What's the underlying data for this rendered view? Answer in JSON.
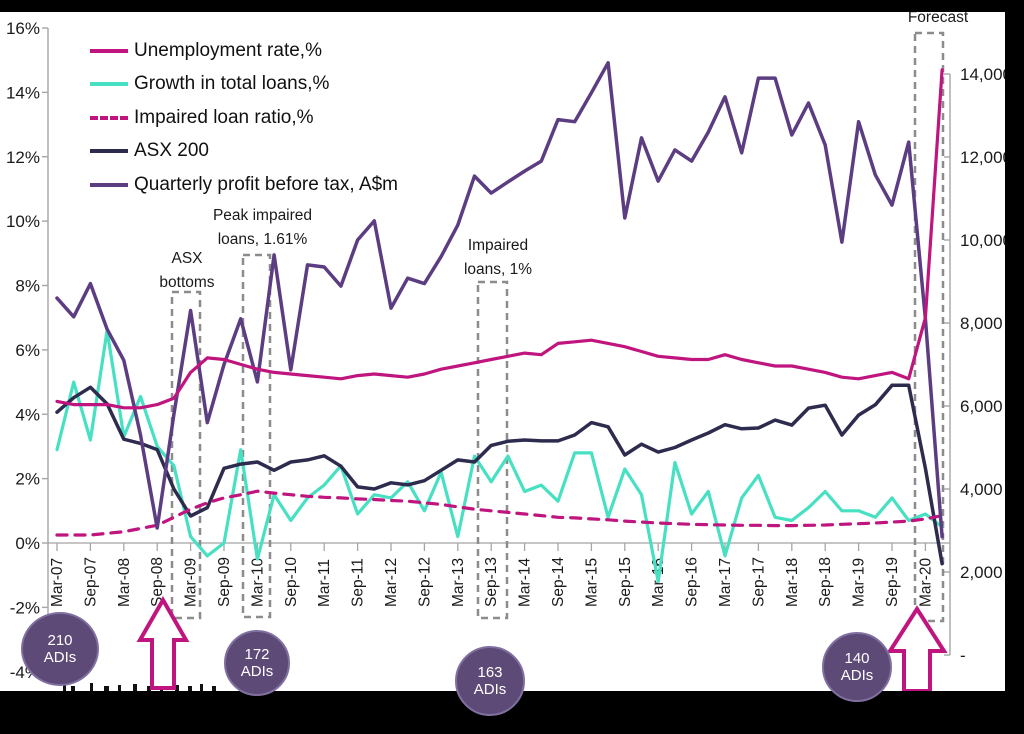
{
  "chart": {
    "legend": {
      "items": [
        {
          "label": "Unemployment rate,%",
          "color": "#C0157E",
          "dashed": false
        },
        {
          "label": "Growth in total loans,%",
          "color": "#47E0C2",
          "dashed": false
        },
        {
          "label": "Impaired loan ratio,%",
          "color": "#C0157E",
          "dashed": true
        },
        {
          "label": "ASX 200",
          "color": "#2D2B4E",
          "dashed": false
        },
        {
          "label": "Quarterly profit before tax, A$m",
          "color": "#5C3D82",
          "dashed": false
        }
      ]
    },
    "annotations": {
      "asx_bottoms": "ASX bottoms",
      "peak_impaired": "Peak impaired loans, 1.61%",
      "impaired_1pct": "Impaired loans, 1%",
      "forecast": "Forecast"
    },
    "badges": {
      "items": [
        {
          "value": "210",
          "unit": "ADIs"
        },
        {
          "value": "172",
          "unit": "ADIs"
        },
        {
          "value": "163",
          "unit": "ADIs"
        },
        {
          "value": "140",
          "unit": "ADIs"
        }
      ]
    },
    "axes": {
      "left_ticks": [
        "16%",
        "14%",
        "12%",
        "10%",
        "8%",
        "6%",
        "4%",
        "2%",
        "0%",
        "-2%",
        "-4%"
      ],
      "right_ticks": [
        "14,000",
        "12,000",
        "10,000",
        "8,000",
        "6,000",
        "4,000",
        "2,000",
        "-"
      ],
      "x_ticks": [
        "Mar-07",
        "Sep-07",
        "Mar-08",
        "Sep-08",
        "Mar-09",
        "Sep-09",
        "Mar-10",
        "Sep-10",
        "Mar-11",
        "Sep-11",
        "Mar-12",
        "Sep-12",
        "Mar-13",
        "Sep-13",
        "Mar-14",
        "Sep-14",
        "Mar-15",
        "Sep-15",
        "Mar-16",
        "Sep-16",
        "Mar-17",
        "Sep-17",
        "Mar-18",
        "Sep-18",
        "Mar-19",
        "Sep-19",
        "Mar-20"
      ]
    }
  },
  "chart_data": {
    "type": "line",
    "x": [
      "Mar-07",
      "Jun-07",
      "Sep-07",
      "Dec-07",
      "Mar-08",
      "Jun-08",
      "Sep-08",
      "Dec-08",
      "Mar-09",
      "Jun-09",
      "Sep-09",
      "Dec-09",
      "Mar-10",
      "Jun-10",
      "Sep-10",
      "Dec-10",
      "Mar-11",
      "Jun-11",
      "Sep-11",
      "Dec-11",
      "Mar-12",
      "Jun-12",
      "Sep-12",
      "Dec-12",
      "Mar-13",
      "Jun-13",
      "Sep-13",
      "Dec-13",
      "Mar-14",
      "Jun-14",
      "Sep-14",
      "Dec-14",
      "Mar-15",
      "Jun-15",
      "Sep-15",
      "Dec-15",
      "Mar-16",
      "Jun-16",
      "Sep-16",
      "Dec-16",
      "Mar-17",
      "Jun-17",
      "Sep-17",
      "Dec-17",
      "Mar-18",
      "Jun-18",
      "Sep-18",
      "Dec-18",
      "Mar-19",
      "Jun-19",
      "Sep-19",
      "Dec-19",
      "Mar-20",
      "Jun-20"
    ],
    "x_tick_labels": [
      "Mar-07",
      "Sep-07",
      "Mar-08",
      "Sep-08",
      "Mar-09",
      "Sep-09",
      "Mar-10",
      "Sep-10",
      "Mar-11",
      "Sep-11",
      "Mar-12",
      "Sep-12",
      "Mar-13",
      "Sep-13",
      "Mar-14",
      "Sep-14",
      "Mar-15",
      "Sep-15",
      "Mar-16",
      "Sep-16",
      "Mar-17",
      "Sep-17",
      "Mar-18",
      "Sep-18",
      "Mar-19",
      "Sep-19",
      "Mar-20"
    ],
    "left_axis": {
      "label": "percent",
      "ylim": [
        -4,
        16
      ],
      "tick_step": 2
    },
    "right_axis": {
      "label": "A$m / index points",
      "ylim": [
        0,
        14000
      ],
      "tick_step": 2000
    },
    "grid": false,
    "legend_position": "top-left",
    "forecast_region": {
      "x_from": "Mar-20",
      "x_to": "Jun-20",
      "label": "Forecast"
    },
    "series": [
      {
        "name": "Unemployment rate,%",
        "axis": "left",
        "color": "#C0157E",
        "style": "solid",
        "width": 3.2,
        "values": [
          4.4,
          4.3,
          4.3,
          4.3,
          4.2,
          4.2,
          4.3,
          4.5,
          5.3,
          5.75,
          5.7,
          5.55,
          5.4,
          5.3,
          5.25,
          5.2,
          5.15,
          5.1,
          5.2,
          5.25,
          5.2,
          5.15,
          5.25,
          5.4,
          5.5,
          5.6,
          5.7,
          5.8,
          5.9,
          5.85,
          6.2,
          6.25,
          6.3,
          6.2,
          6.1,
          5.95,
          5.8,
          5.75,
          5.7,
          5.7,
          5.85,
          5.7,
          5.6,
          5.5,
          5.5,
          5.4,
          5.3,
          5.15,
          5.1,
          5.2,
          5.3,
          5.1,
          7.0,
          14.7
        ]
      },
      {
        "name": "Growth in total loans,%",
        "axis": "left",
        "color": "#47E0C2",
        "style": "solid",
        "width": 3.2,
        "values": [
          2.9,
          5.0,
          3.2,
          6.6,
          3.3,
          4.55,
          3.0,
          2.4,
          0.2,
          -0.4,
          0.0,
          2.9,
          -0.5,
          1.5,
          0.7,
          1.4,
          1.8,
          2.4,
          0.9,
          1.5,
          1.4,
          1.9,
          1.0,
          2.2,
          0.2,
          2.7,
          1.9,
          2.7,
          1.6,
          1.8,
          1.3,
          2.8,
          2.8,
          0.8,
          2.3,
          1.5,
          -1.2,
          2.5,
          0.9,
          1.6,
          -0.4,
          1.4,
          2.1,
          0.8,
          0.7,
          1.1,
          1.6,
          1.0,
          1.0,
          0.8,
          1.4,
          0.7,
          0.9,
          0.5
        ]
      },
      {
        "name": "Impaired loan ratio,%",
        "axis": "left",
        "color": "#C0157E",
        "style": "dashed",
        "width": 3.2,
        "values": [
          0.25,
          0.25,
          0.25,
          0.3,
          0.35,
          0.45,
          0.55,
          0.8,
          1.05,
          1.25,
          1.4,
          1.5,
          1.61,
          1.55,
          1.5,
          1.45,
          1.42,
          1.4,
          1.37,
          1.35,
          1.32,
          1.3,
          1.25,
          1.2,
          1.12,
          1.05,
          1.0,
          0.95,
          0.9,
          0.85,
          0.8,
          0.78,
          0.75,
          0.72,
          0.68,
          0.65,
          0.62,
          0.6,
          0.58,
          0.57,
          0.56,
          0.55,
          0.55,
          0.54,
          0.54,
          0.55,
          0.56,
          0.58,
          0.6,
          0.62,
          0.65,
          0.68,
          0.75,
          0.85
        ]
      },
      {
        "name": "ASX 200",
        "axis": "right",
        "color": "#2D2B4E",
        "style": "solid",
        "width": 3.5,
        "values": [
          5850,
          6200,
          6450,
          6050,
          5200,
          5100,
          4950,
          4000,
          3350,
          3550,
          4500,
          4600,
          4650,
          4450,
          4650,
          4700,
          4800,
          4550,
          4050,
          4000,
          4150,
          4100,
          4200,
          4450,
          4700,
          4650,
          5050,
          5150,
          5180,
          5160,
          5160,
          5300,
          5600,
          5500,
          4820,
          5080,
          4890,
          5000,
          5180,
          5350,
          5550,
          5450,
          5470,
          5660,
          5540,
          5950,
          6020,
          5300,
          5780,
          6030,
          6500,
          6500,
          4500,
          2200
        ]
      },
      {
        "name": "Quarterly profit before tax, A$m",
        "axis": "right",
        "color": "#5C3D82",
        "style": "solid",
        "width": 3.5,
        "values": [
          8600,
          8150,
          8950,
          7850,
          7100,
          5300,
          3060,
          5800,
          8300,
          5600,
          7000,
          8100,
          6580,
          9640,
          6870,
          9400,
          9350,
          8890,
          10000,
          10460,
          8360,
          9080,
          8950,
          9600,
          10360,
          11540,
          11130,
          11400,
          11660,
          11900,
          12900,
          12850,
          13550,
          14270,
          10530,
          12460,
          11420,
          12170,
          11900,
          12600,
          13450,
          12100,
          13900,
          13900,
          12530,
          13300,
          12290,
          9950,
          12850,
          11570,
          10840,
          12360,
          8100,
          2850
        ]
      }
    ],
    "callouts": [
      {
        "text": "ASX bottoms",
        "at": "Mar-09"
      },
      {
        "text": "Peak impaired loans, 1.61%",
        "at": "Mar-10"
      },
      {
        "text": "Impaired loans, 1%",
        "at": "Sep-13"
      },
      {
        "text": "Forecast",
        "at": "Mar-20"
      }
    ],
    "adi_badges": [
      {
        "value": 210,
        "unit": "ADIs",
        "near": "Mar-07"
      },
      {
        "value": 172,
        "unit": "ADIs",
        "near": "Sep-09"
      },
      {
        "value": 163,
        "unit": "ADIs",
        "near": "Sep-13"
      },
      {
        "value": 140,
        "unit": "ADIs",
        "near": "Sep-19"
      }
    ]
  }
}
